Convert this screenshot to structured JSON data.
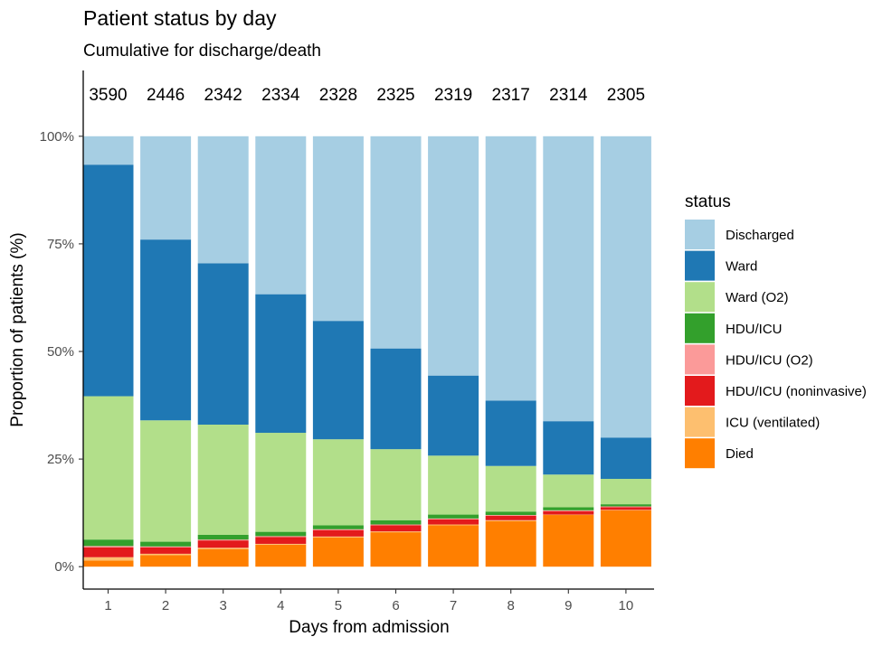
{
  "chart_data": {
    "type": "bar",
    "stacked": true,
    "title": "Patient status by day",
    "subtitle": "Cumulative for discharge/death",
    "xlabel": "Days from admission",
    "ylabel": "Proportion of patients (%)",
    "ylim": [
      0,
      100
    ],
    "yticks": [
      0,
      25,
      50,
      75,
      100
    ],
    "ytick_labels": [
      "0%",
      "25%",
      "50%",
      "75%",
      "100%"
    ],
    "categories": [
      "1",
      "2",
      "3",
      "4",
      "5",
      "6",
      "7",
      "8",
      "9",
      "10"
    ],
    "counts": [
      "3590",
      "2446",
      "2342",
      "2334",
      "2328",
      "2325",
      "2319",
      "2317",
      "2314",
      "2305"
    ],
    "legend_title": "status",
    "legend_position": "right",
    "grid": false,
    "series": [
      {
        "name": "Discharged",
        "color": "#a6cee3",
        "values": [
          6.6,
          24.0,
          29.5,
          36.7,
          42.9,
          49.3,
          55.6,
          61.4,
          66.2,
          70.0
        ]
      },
      {
        "name": "Ward",
        "color": "#1f78b4",
        "values": [
          53.8,
          42.0,
          37.5,
          32.2,
          27.5,
          23.4,
          18.6,
          15.2,
          12.4,
          9.6
        ]
      },
      {
        "name": "Ward (O2)",
        "color": "#b2df8a",
        "values": [
          33.3,
          28.2,
          25.6,
          23.0,
          20.0,
          16.5,
          13.7,
          10.6,
          7.6,
          5.9
        ]
      },
      {
        "name": "HDU/ICU",
        "color": "#33a02c",
        "values": [
          1.5,
          1.1,
          1.1,
          1.0,
          0.9,
          1.0,
          0.9,
          0.8,
          0.7,
          0.5
        ]
      },
      {
        "name": "HDU/ICU (O2)",
        "color": "#fb9a99",
        "values": [
          0.3,
          0.2,
          0.2,
          0.2,
          0.2,
          0.2,
          0.2,
          0.2,
          0.2,
          0.2
        ]
      },
      {
        "name": "HDU/ICU (noninvasive)",
        "color": "#e31a1c",
        "values": [
          2.3,
          1.5,
          1.7,
          1.6,
          1.5,
          1.4,
          1.2,
          1.0,
          0.8,
          0.6
        ]
      },
      {
        "name": "ICU (ventilated)",
        "color": "#fdbf6f",
        "values": [
          0.8,
          0.3,
          0.3,
          0.2,
          0.2,
          0.2,
          0.2,
          0.2,
          0.1,
          0.1
        ]
      },
      {
        "name": "Died",
        "color": "#ff7f00",
        "values": [
          1.4,
          2.7,
          4.1,
          5.1,
          6.8,
          8.0,
          9.6,
          10.6,
          12.0,
          13.1
        ]
      }
    ]
  }
}
